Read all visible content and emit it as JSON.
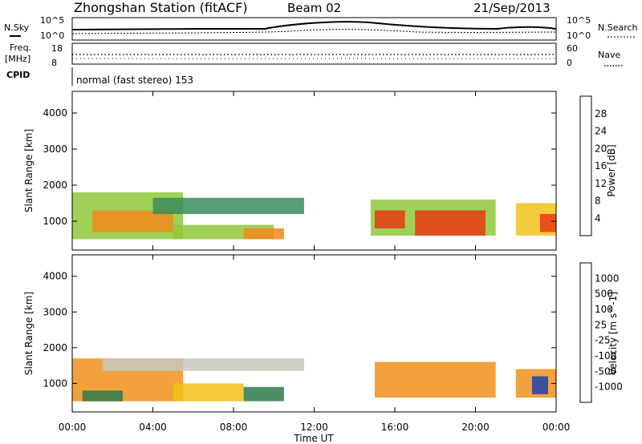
{
  "header": {
    "station": "Zhongshan Station (fitACF)",
    "beam": "Beam 02",
    "date": "21/Sep/2013"
  },
  "top_panels": {
    "nsky_label": "N.Sky",
    "nsearch_label": "N.Search",
    "freq_label_1": "Freq.",
    "freq_label_2": "[MHz]",
    "nave_label": "Nave",
    "cpid_label": "CPID",
    "cpid_text": "normal (fast stereo) 153",
    "noise_ticks": [
      "10^5",
      "10^0"
    ],
    "freq_ticks": [
      "18",
      "8"
    ],
    "nave_ticks": [
      "60",
      "0"
    ]
  },
  "chart_data": [
    {
      "type": "heatmap",
      "title": "",
      "xlabel": "Time UT",
      "ylabel": "Slant Range [km]",
      "x_ticks": [
        "00:00",
        "04:00",
        "08:00",
        "12:00",
        "16:00",
        "20:00",
        "00:00"
      ],
      "y_ticks": [
        "1000",
        "2000",
        "3000",
        "4000"
      ],
      "ylim": [
        200,
        4600
      ],
      "colorbar": {
        "label": "Power [dB]",
        "ticks": [
          "4",
          "8",
          "12",
          "16",
          "20",
          "24",
          "28"
        ],
        "colors": [
          "#1f2bd9",
          "#2f4fa0",
          "#3c8c5a",
          "#8fc83a",
          "#f2c21a",
          "#f08a1a",
          "#e83a14",
          "#e01010"
        ]
      },
      "regions": [
        {
          "t0": 0.0,
          "t1": 5.5,
          "r0": 500,
          "r1": 1800,
          "level": 3
        },
        {
          "t0": 1.0,
          "t1": 5.0,
          "r0": 700,
          "r1": 1300,
          "level": 5
        },
        {
          "t0": 4.0,
          "t1": 11.5,
          "r0": 1200,
          "r1": 1650,
          "level": 2
        },
        {
          "t0": 5.0,
          "t1": 10.0,
          "r0": 500,
          "r1": 900,
          "level": 3
        },
        {
          "t0": 8.5,
          "t1": 10.5,
          "r0": 500,
          "r1": 800,
          "level": 5
        },
        {
          "t0": 14.8,
          "t1": 21.0,
          "r0": 600,
          "r1": 1600,
          "level": 3
        },
        {
          "t0": 15.0,
          "t1": 16.5,
          "r0": 800,
          "r1": 1300,
          "level": 6
        },
        {
          "t0": 17.0,
          "t1": 20.5,
          "r0": 600,
          "r1": 1300,
          "level": 6
        },
        {
          "t0": 22.0,
          "t1": 24.0,
          "r0": 600,
          "r1": 1500,
          "level": 4
        },
        {
          "t0": 23.2,
          "t1": 24.0,
          "r0": 700,
          "r1": 1200,
          "level": 6
        }
      ]
    },
    {
      "type": "heatmap",
      "title": "",
      "xlabel": "Time UT",
      "ylabel": "Slant Range [km]",
      "x_ticks": [
        "00:00",
        "04:00",
        "08:00",
        "12:00",
        "16:00",
        "20:00",
        "00:00"
      ],
      "y_ticks": [
        "1000",
        "2000",
        "3000",
        "4000"
      ],
      "ylim": [
        200,
        4600
      ],
      "colorbar": {
        "label": "Velocity [m s^-1]",
        "ticks": [
          "1000",
          "500",
          "100",
          "25",
          "-25",
          "-100",
          "-500",
          "-1000"
        ],
        "colors": [
          "#1f3fb0",
          "#2f7a4a",
          "#4fb040",
          "#8fd05a",
          "#c8c8c0",
          "#f2c21a",
          "#f0901a",
          "#f06a14",
          "#e02010"
        ]
      },
      "regions": [
        {
          "t0": 0.0,
          "t1": 5.5,
          "r0": 500,
          "r1": 1700,
          "level": 6
        },
        {
          "t0": 0.5,
          "t1": 2.5,
          "r0": 500,
          "r1": 800,
          "level": 1
        },
        {
          "t0": 1.5,
          "t1": 11.5,
          "r0": 1350,
          "r1": 1700,
          "level": 4
        },
        {
          "t0": 5.0,
          "t1": 8.5,
          "r0": 500,
          "r1": 1000,
          "level": 5
        },
        {
          "t0": 8.5,
          "t1": 10.5,
          "r0": 500,
          "r1": 900,
          "level": 1
        },
        {
          "t0": 15.0,
          "t1": 21.0,
          "r0": 600,
          "r1": 1600,
          "level": 6
        },
        {
          "t0": 22.0,
          "t1": 24.0,
          "r0": 600,
          "r1": 1400,
          "level": 6
        },
        {
          "t0": 22.8,
          "t1": 23.6,
          "r0": 700,
          "r1": 1200,
          "level": 0
        }
      ]
    }
  ]
}
